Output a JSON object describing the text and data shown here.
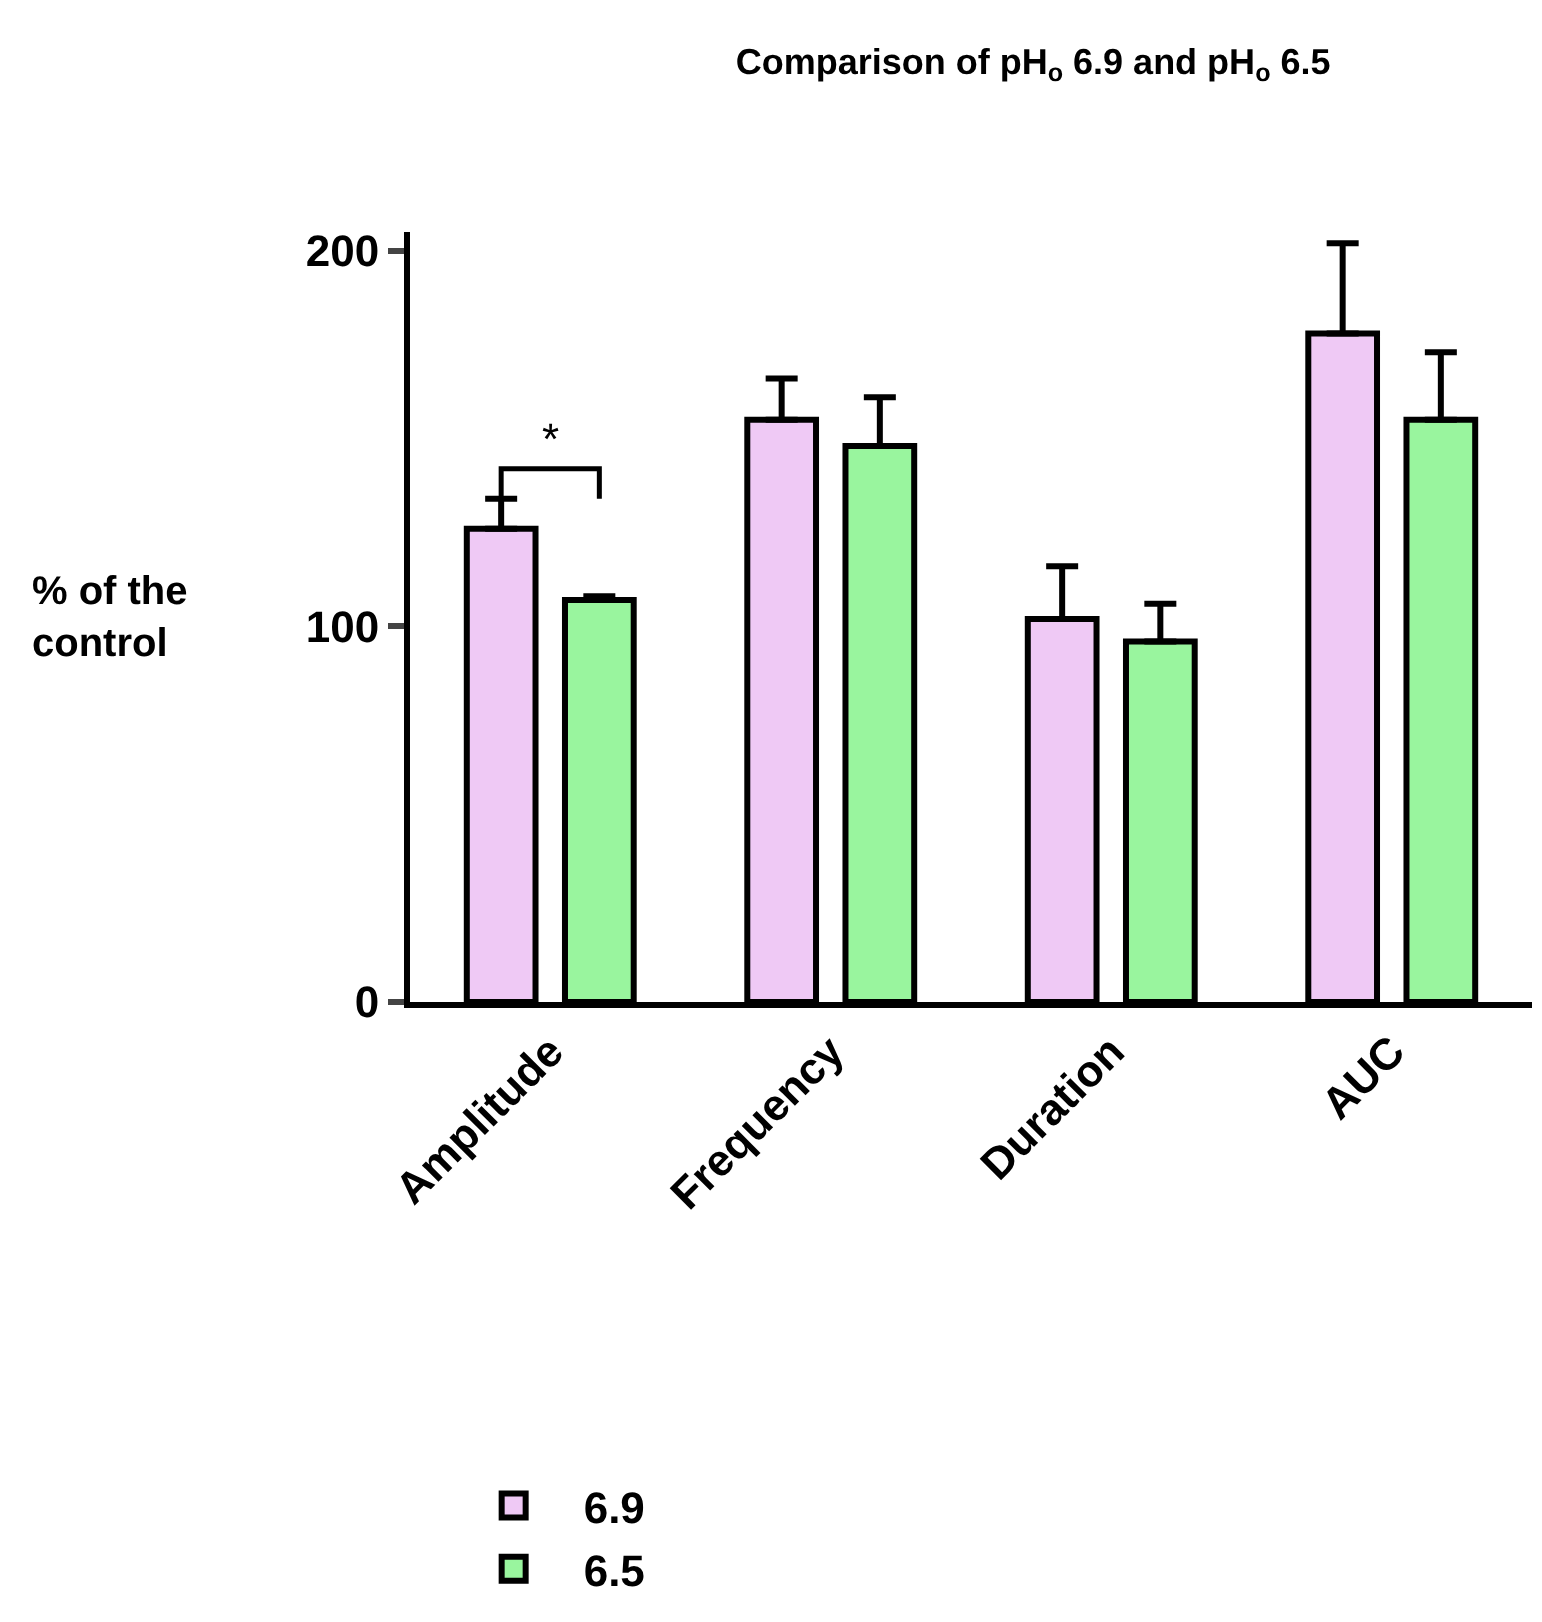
{
  "chart_data": {
    "type": "bar",
    "title": "Comparison of pH$_{o}$ 6.9 and pH$_{o}$ 6.5",
    "ylabel": "% of the control",
    "categories": [
      "Amplitude",
      "Frequency",
      "Duration",
      "AUC"
    ],
    "series": [
      {
        "name": "6.9",
        "color": "#efc9f5",
        "values": [
          126,
          155,
          102,
          178
        ],
        "errors": [
          [
            126,
            134
          ],
          [
            155,
            166
          ],
          [
            102,
            116
          ],
          [
            178,
            202
          ]
        ]
      },
      {
        "name": "6.5",
        "color": "#99f59e",
        "values": [
          107,
          148,
          96,
          155
        ],
        "errors": [
          [
            107,
            108
          ],
          [
            148,
            161
          ],
          [
            96,
            106
          ],
          [
            155,
            173
          ]
        ]
      }
    ],
    "ylim": [
      0,
      205
    ],
    "yticks": [
      0,
      100,
      200
    ],
    "legend": "bottom left",
    "annotations": [
      "*"
    ]
  }
}
